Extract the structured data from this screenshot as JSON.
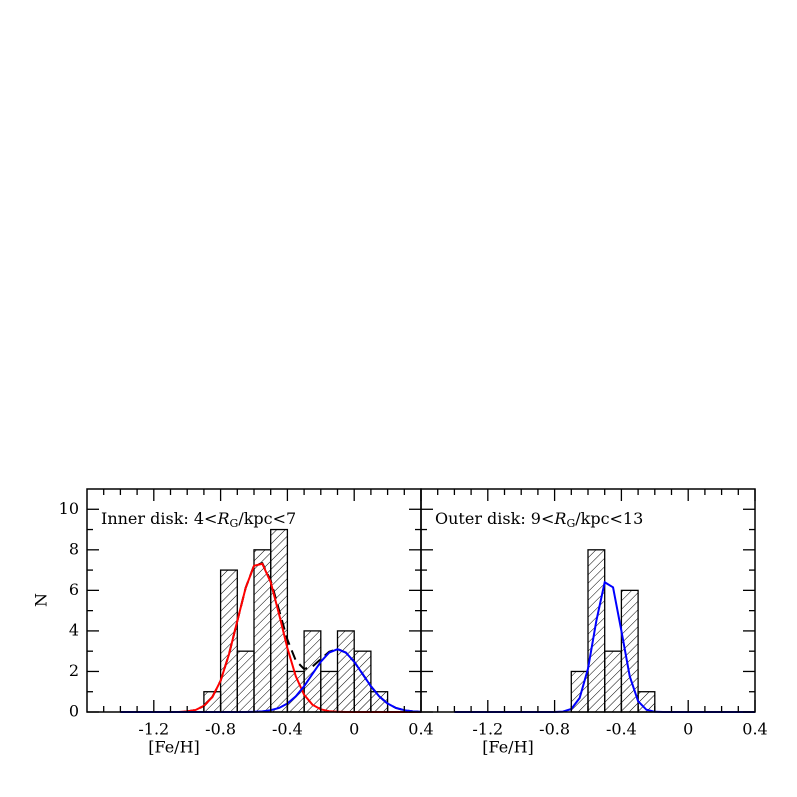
{
  "chart_data": [
    {
      "type": "histogram",
      "annotation": {
        "before": "Inner disk: 4<",
        "symbol": "R",
        "subscript": "G",
        "after": "/kpc<7"
      },
      "x_label": "[Fe/H]",
      "y_label": "N",
      "bins": [
        -0.9,
        -0.8,
        -0.7,
        -0.6,
        -0.5,
        -0.4,
        -0.3,
        -0.2,
        -0.1,
        0,
        0.1,
        0.2
      ],
      "counts": [
        1,
        7,
        3,
        8,
        9,
        2,
        4,
        2,
        4,
        3,
        1
      ],
      "hatch_color": "#000000",
      "xlim": [
        -1.6,
        0.4
      ],
      "ylim": [
        0,
        11
      ],
      "xticks": [
        -1.2,
        -0.8,
        -0.4,
        0,
        0.4
      ],
      "yticks": [
        0,
        2,
        4,
        6,
        8,
        10
      ],
      "xminor": [
        -1.5,
        -1.4,
        -1.3,
        -1.1,
        -1.0,
        -0.9,
        -0.7,
        -0.6,
        -0.5,
        -0.3,
        -0.2,
        -0.1,
        0.1,
        0.2,
        0.3
      ],
      "yminor": [
        1,
        3,
        5,
        7,
        9
      ],
      "show_ytick_labels": true,
      "curve_x": [
        -1.4,
        -1.35,
        -1.3,
        -1.25,
        -1.2,
        -1.15,
        -1.1,
        -1.05,
        -1.0,
        -0.95,
        -0.9,
        -0.85,
        -0.8,
        -0.75,
        -0.7,
        -0.65,
        -0.6,
        -0.55,
        -0.5,
        -0.45,
        -0.4,
        -0.35,
        -0.3,
        -0.25,
        -0.2,
        -0.15,
        -0.1,
        -0.05,
        0,
        0.05,
        0.1,
        0.15,
        0.2,
        0.25,
        0.3,
        0.35,
        0.4
      ],
      "curves": [
        {
          "color": "#000000",
          "dashed": true,
          "values": [
            0,
            0,
            0,
            0,
            0,
            0,
            0,
            0,
            0.03,
            0.1,
            0.3,
            0.73,
            1.54,
            2.84,
            4.49,
            6.12,
            7.22,
            7.34,
            6.49,
            5.03,
            3.57,
            2.54,
            2.12,
            2.24,
            2.61,
            2.97,
            3.11,
            2.93,
            2.48,
            1.88,
            1.27,
            0.77,
            0.42,
            0.2,
            0.09,
            0.03,
            0.01
          ]
        },
        {
          "color": "#ff0000",
          "dashed": false,
          "values": [
            0,
            0,
            0,
            0,
            0,
            0,
            0,
            0,
            0.03,
            0.1,
            0.3,
            0.73,
            1.54,
            2.84,
            4.49,
            6.12,
            7.21,
            7.31,
            6.4,
            4.83,
            3.15,
            1.77,
            0.85,
            0.36,
            0.13,
            0.04,
            0.01,
            0,
            0,
            0,
            0,
            0,
            0,
            0,
            0,
            0,
            0
          ]
        },
        {
          "color": "#0000ff",
          "dashed": false,
          "values": [
            0,
            0,
            0,
            0,
            0,
            0,
            0,
            0,
            0,
            0,
            0,
            0,
            0,
            0,
            0,
            0,
            0.01,
            0.03,
            0.09,
            0.2,
            0.42,
            0.77,
            1.27,
            1.88,
            2.48,
            2.93,
            3.1,
            2.93,
            2.48,
            1.88,
            1.27,
            0.77,
            0.42,
            0.2,
            0.09,
            0.03,
            0.01
          ]
        }
      ]
    },
    {
      "type": "histogram",
      "annotation": {
        "before": "Outer disk: 9<",
        "symbol": "R",
        "subscript": "G",
        "after": "/kpc<13"
      },
      "x_label": "[Fe/H]",
      "bins": [
        -0.7,
        -0.6,
        -0.5,
        -0.4,
        -0.3,
        -0.2
      ],
      "counts": [
        2,
        8,
        3,
        6,
        1
      ],
      "hatch_color": "#000000",
      "xlim": [
        -1.6,
        0.4
      ],
      "ylim": [
        0,
        11
      ],
      "xticks": [
        -1.2,
        -0.8,
        -0.4,
        0,
        0.4
      ],
      "yticks": [
        0,
        2,
        4,
        6,
        8,
        10
      ],
      "xminor": [
        -1.5,
        -1.4,
        -1.3,
        -1.1,
        -1.0,
        -0.9,
        -0.7,
        -0.6,
        -0.5,
        -0.3,
        -0.2,
        -0.1,
        0.1,
        0.2,
        0.3
      ],
      "yminor": [
        1,
        3,
        5,
        7,
        9
      ],
      "show_ytick_labels": false,
      "curve_x": [
        -1.4,
        -1.35,
        -1.3,
        -1.25,
        -1.2,
        -1.15,
        -1.1,
        -1.05,
        -1.0,
        -0.95,
        -0.9,
        -0.85,
        -0.8,
        -0.75,
        -0.7,
        -0.65,
        -0.6,
        -0.55,
        -0.5,
        -0.45,
        -0.4,
        -0.35,
        -0.3,
        -0.25,
        -0.2,
        -0.15,
        -0.1,
        -0.05,
        0,
        0.05,
        0.1,
        0.15,
        0.2,
        0.25,
        0.3,
        0.35,
        0.4
      ],
      "curves": [
        {
          "color": "#0000ff",
          "dashed": false,
          "values": [
            0,
            0,
            0,
            0,
            0,
            0,
            0,
            0,
            0,
            0,
            0,
            0,
            0,
            0.02,
            0.15,
            0.69,
            2.14,
            4.5,
            6.4,
            6.15,
            4.0,
            1.76,
            0.53,
            0.11,
            0.01,
            0,
            0,
            0,
            0,
            0,
            0,
            0,
            0,
            0,
            0,
            0,
            0
          ]
        }
      ]
    }
  ]
}
